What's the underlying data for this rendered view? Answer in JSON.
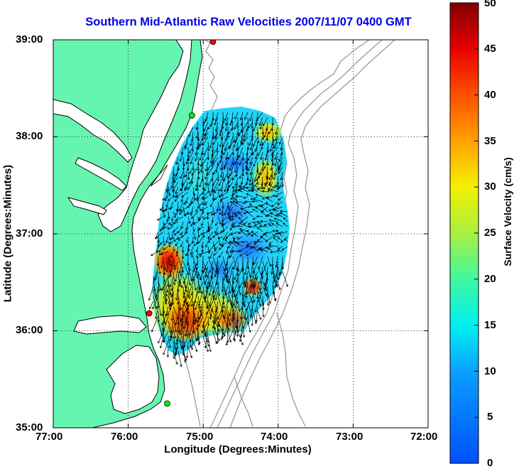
{
  "title": "Southern Mid-Atlantic Raw Velocities 2007/11/07 0400 GMT",
  "x_axis": {
    "label": "Longitude (Degrees:Minutes)",
    "ticks": [
      "77:00",
      "76:00",
      "75:00",
      "74:00",
      "73:00",
      "72:00"
    ]
  },
  "y_axis": {
    "label": "Latitude (Degrees:Minutes)",
    "ticks": [
      "39:00",
      "38:00",
      "37:00",
      "36:00",
      "35:00"
    ]
  },
  "colorbar": {
    "label": "Surface Velocity (cm/s)",
    "ticks": [
      "50",
      "45",
      "40",
      "35",
      "30",
      "25",
      "20",
      "15",
      "10",
      "5",
      "0"
    ],
    "range": [
      0,
      50
    ],
    "colormap": "jet"
  },
  "map": {
    "lon_range": [
      -77,
      -72
    ],
    "lat_range": [
      35,
      39
    ],
    "land_color": "#66f5b0",
    "water_color": "#ffffff",
    "bathymetry_color": "#9a9a9a",
    "grid": "dotted",
    "stations": [
      {
        "lon": -74.87,
        "lat": 38.98,
        "color": "#ff0000"
      },
      {
        "lon": -75.15,
        "lat": 38.22,
        "color": "#00ee00"
      },
      {
        "lon": -75.72,
        "lat": 36.18,
        "color": "#ff0000"
      },
      {
        "lon": -75.48,
        "lat": 35.25,
        "color": "#00ee00"
      }
    ]
  }
}
